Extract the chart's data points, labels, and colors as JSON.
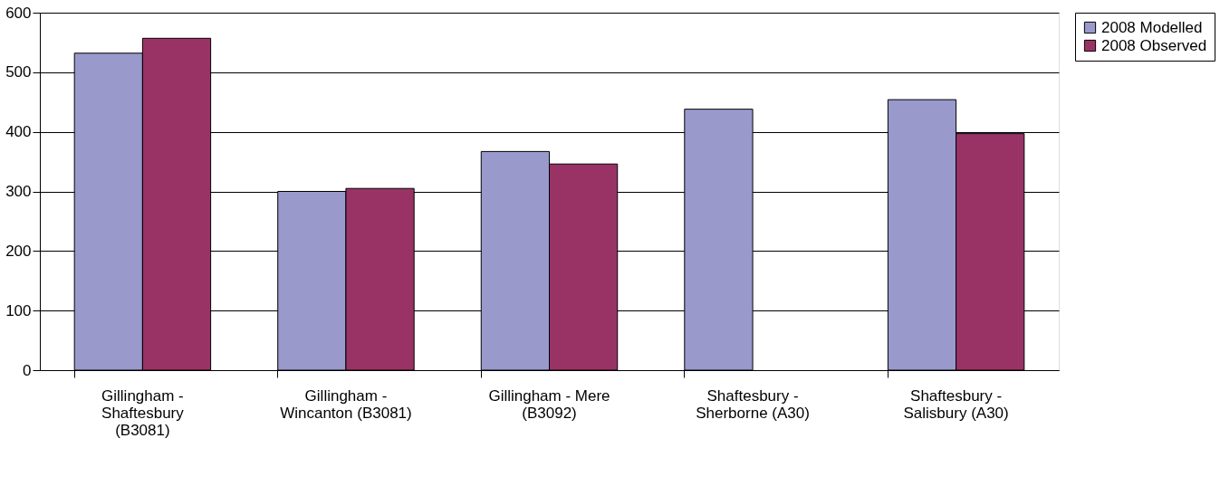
{
  "chart_data": {
    "type": "bar",
    "categories": [
      "Gillingham -\nShaftesbury\n(B3081)",
      "Gillingham -\nWincanton (B3081)",
      "Gillingham - Mere\n(B3092)",
      "Shaftesbury -\nSherborne (A30)",
      "Shaftesbury -\nSalisbury (A30)"
    ],
    "series": [
      {
        "name": "2008 Modelled",
        "color": "#9999cc",
        "values": [
          532,
          300,
          367,
          438,
          454
        ]
      },
      {
        "name": "2008 Observed",
        "color": "#993366",
        "values": [
          557,
          305,
          346,
          null,
          397
        ]
      }
    ],
    "ylim": [
      0,
      600
    ],
    "yticks": [
      0,
      100,
      200,
      300,
      400,
      500,
      600
    ],
    "grid": "y",
    "legend": "right"
  }
}
